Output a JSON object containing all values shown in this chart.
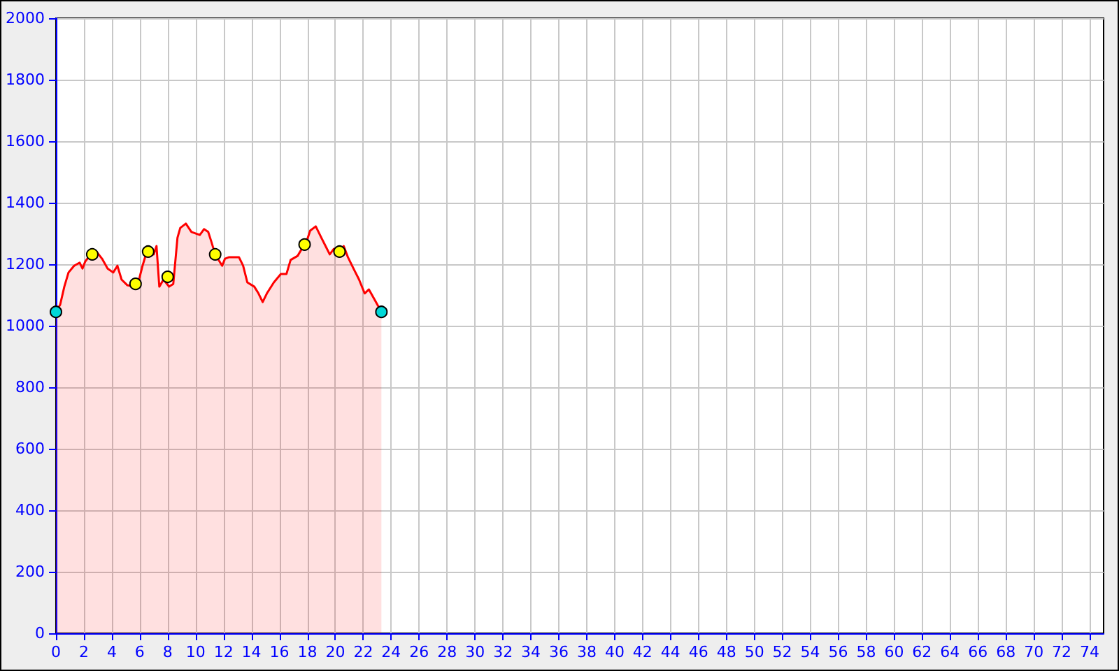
{
  "chart_data": {
    "type": "area",
    "xlim": [
      0,
      75
    ],
    "xticks": [
      0,
      2,
      4,
      6,
      8,
      10,
      12,
      14,
      16,
      18,
      20,
      22,
      24,
      26,
      28,
      30,
      32,
      34,
      36,
      38,
      40,
      42,
      44,
      46,
      48,
      50,
      52,
      54,
      56,
      58,
      60,
      62,
      64,
      66,
      68,
      70,
      72,
      74
    ],
    "ylim": [
      0,
      2000
    ],
    "yticks": [
      0,
      200,
      400,
      600,
      800,
      1000,
      1200,
      1400,
      1600,
      1800,
      2000
    ],
    "grid": true,
    "series": [
      {
        "color": "#ff0000",
        "marker": "none",
        "x": [
          0,
          0.3,
          0.6,
          0.9,
          1.3,
          1.7,
          1.9,
          2.1,
          2.5,
          2.9,
          3.3,
          3.7,
          4.1,
          4.4,
          4.7,
          5.1,
          5.6,
          5.9,
          6.2,
          6.5,
          6.8,
          7.0,
          7.2,
          7.4,
          7.7,
          8.1,
          8.4,
          8.7,
          8.9,
          9.3,
          9.7,
          10.3,
          10.6,
          10.9,
          11.1,
          11.4,
          11.9,
          12.1,
          12.4,
          13.1,
          13.4,
          13.7,
          14.2,
          14.5,
          14.8,
          15.1,
          15.6,
          16.1,
          16.5,
          16.8,
          17.3,
          17.6,
          17.9,
          18.2,
          18.6,
          19.0,
          19.3,
          19.6,
          19.9,
          20.3,
          20.6,
          20.9,
          21.3,
          21.7,
          22.1,
          22.4,
          22.8,
          23.3
        ],
        "values": [
          1045,
          1068,
          1127,
          1173,
          1195,
          1205,
          1186,
          1209,
          1232,
          1241,
          1218,
          1186,
          1173,
          1195,
          1150,
          1132,
          1127,
          1141,
          1195,
          1241,
          1250,
          1232,
          1259,
          1127,
          1150,
          1127,
          1136,
          1286,
          1318,
          1332,
          1305,
          1295,
          1314,
          1305,
          1277,
          1232,
          1195,
          1218,
          1223,
          1223,
          1195,
          1141,
          1127,
          1105,
          1077,
          1105,
          1141,
          1168,
          1168,
          1214,
          1227,
          1250,
          1268,
          1309,
          1323,
          1286,
          1259,
          1232,
          1250,
          1245,
          1259,
          1223,
          1186,
          1150,
          1105,
          1118,
          1086,
          1045
        ]
      },
      {
        "type": "scatter",
        "color": "#ffff00",
        "marker": "circle",
        "x": [
          2.6,
          5.7,
          6.6,
          8.0,
          11.4,
          17.8,
          20.3
        ],
        "values": [
          1232,
          1136,
          1241,
          1159,
          1232,
          1264,
          1241
        ]
      },
      {
        "type": "scatter",
        "color": "#00d8d8",
        "marker": "circle",
        "x": [
          0,
          23.3
        ],
        "values": [
          1045,
          1045
        ]
      }
    ]
  }
}
